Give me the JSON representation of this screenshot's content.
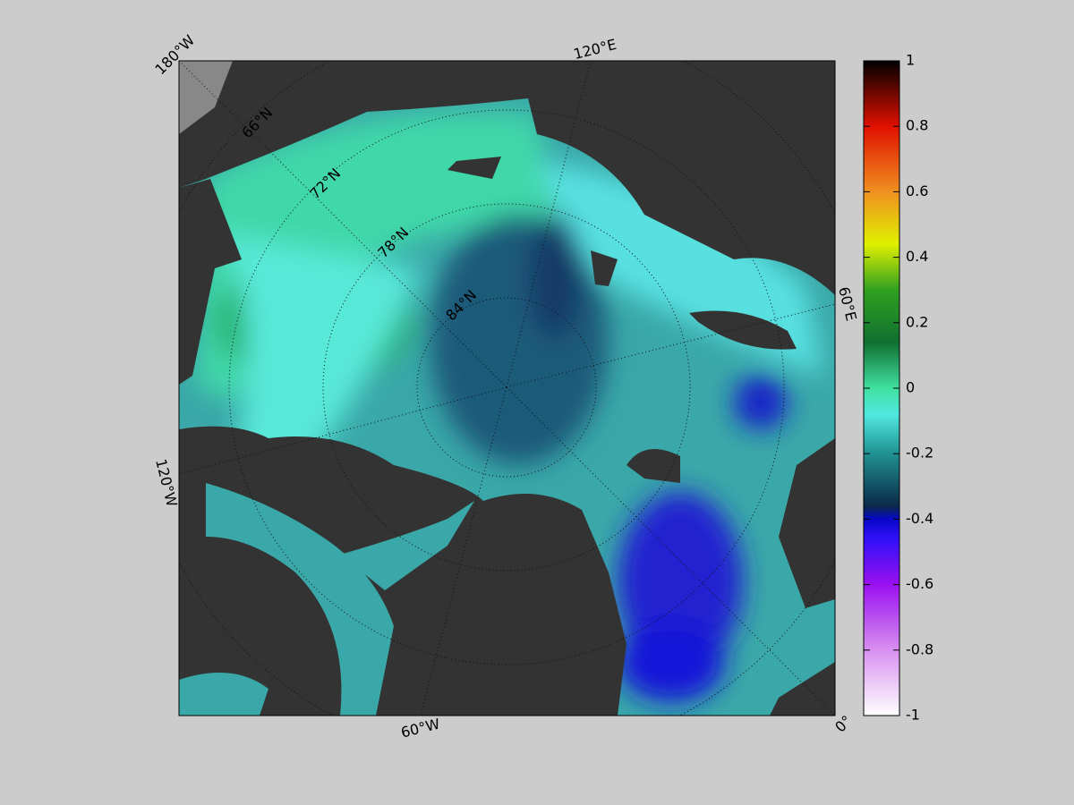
{
  "map": {
    "labels": {
      "lon_180w": "180°W",
      "lon_120e": "120°E",
      "lon_60e": "60°E",
      "lon_0": "0°",
      "lon_60w": "60°W",
      "lon_120w": "120°W",
      "lat_66": "66°N",
      "lat_72": "72°N",
      "lat_78": "78°N",
      "lat_84": "84°N"
    }
  },
  "colorbar": {
    "lim": [
      -1,
      1
    ],
    "ticks": [
      1,
      0.8,
      0.6,
      0.4,
      0.2,
      0,
      -0.2,
      -0.4,
      -0.6,
      -0.8,
      -1
    ]
  }
}
